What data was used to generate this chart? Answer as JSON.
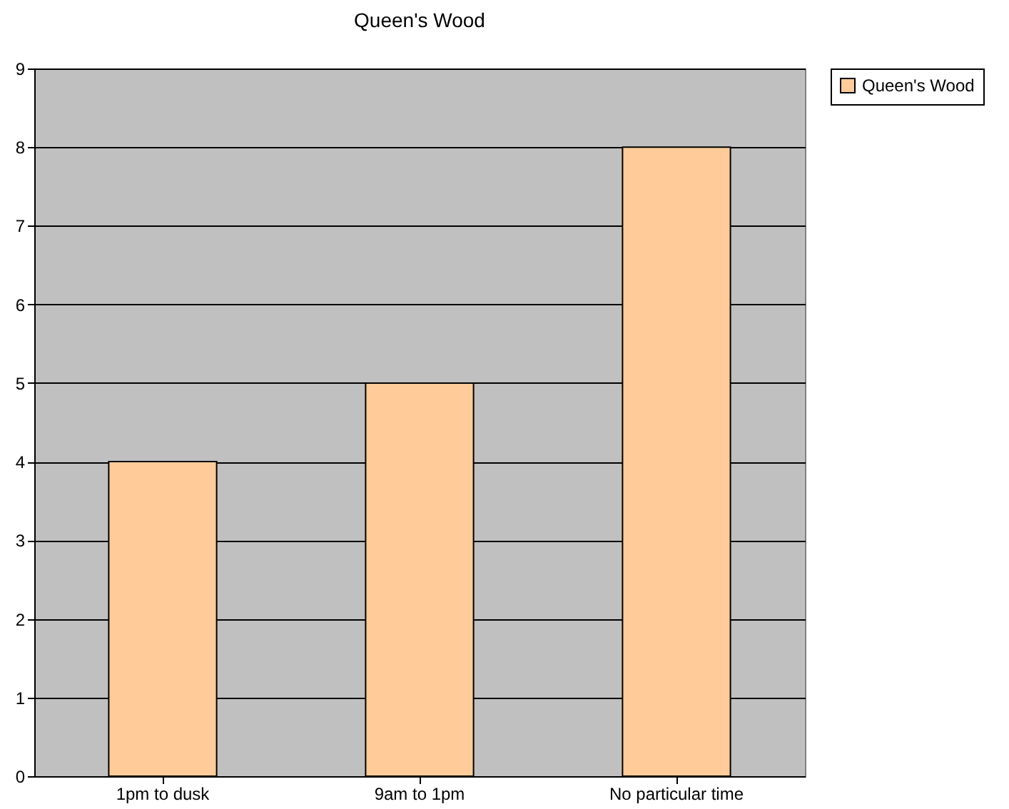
{
  "chart_data": {
    "type": "bar",
    "title": "Queen's Wood",
    "categories": [
      "1pm to dusk",
      "9am to 1pm",
      "No particular time"
    ],
    "series": [
      {
        "name": "Queen's Wood",
        "color": "#ffcc99",
        "values": [
          4,
          5,
          8
        ]
      }
    ],
    "ylim": [
      0,
      9
    ],
    "yticks": [
      0,
      1,
      2,
      3,
      4,
      5,
      6,
      7,
      8,
      9
    ],
    "grid": "y",
    "legend": "right"
  }
}
